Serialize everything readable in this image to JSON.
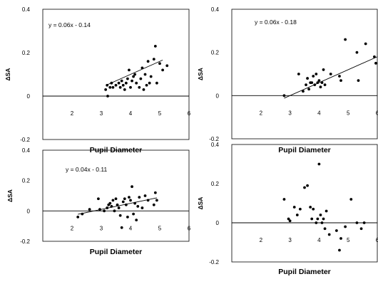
{
  "chart_data": [
    {
      "type": "scatter",
      "xlabel": "Pupil Diameter",
      "ylabel": "ΔSA",
      "xlim": [
        1,
        6
      ],
      "ylim": [
        -0.2,
        0.4
      ],
      "xticks": [
        "2",
        "3",
        "4",
        "5",
        "6"
      ],
      "yticks": [
        "0.4",
        "0.2",
        "0",
        "-0.2"
      ],
      "equation": "y = 0.06x - 0.14",
      "trendline": {
        "slope": 0.06,
        "intercept": -0.14,
        "x": [
          3.2,
          5.1
        ]
      },
      "points": [
        [
          3.15,
          0.03
        ],
        [
          3.2,
          0.05
        ],
        [
          3.22,
          0.0
        ],
        [
          3.3,
          0.04
        ],
        [
          3.35,
          0.06
        ],
        [
          3.4,
          0.04
        ],
        [
          3.5,
          0.05
        ],
        [
          3.6,
          0.06
        ],
        [
          3.65,
          0.04
        ],
        [
          3.7,
          0.07
        ],
        [
          3.75,
          0.05
        ],
        [
          3.8,
          0.03
        ],
        [
          3.85,
          0.06
        ],
        [
          3.9,
          0.08
        ],
        [
          3.95,
          0.12
        ],
        [
          4.0,
          0.04
        ],
        [
          4.05,
          0.07
        ],
        [
          4.1,
          0.09
        ],
        [
          4.15,
          0.1
        ],
        [
          4.2,
          0.06
        ],
        [
          4.3,
          0.04
        ],
        [
          4.35,
          0.08
        ],
        [
          4.4,
          0.13
        ],
        [
          4.45,
          0.03
        ],
        [
          4.5,
          0.1
        ],
        [
          4.55,
          0.05
        ],
        [
          4.6,
          0.16
        ],
        [
          4.65,
          0.06
        ],
        [
          4.7,
          0.09
        ],
        [
          4.8,
          0.17
        ],
        [
          4.85,
          0.23
        ],
        [
          4.9,
          0.06
        ],
        [
          5.0,
          0.15
        ],
        [
          5.1,
          0.12
        ],
        [
          5.25,
          0.14
        ]
      ]
    },
    {
      "type": "scatter",
      "xlabel": "Pupil Diameter",
      "ylabel": "ΔSA",
      "xlim": [
        1,
        6
      ],
      "ylim": [
        -0.2,
        0.4
      ],
      "xticks": [
        "2",
        "3",
        "4",
        "5",
        "6"
      ],
      "yticks": [
        "0.4",
        "0.2",
        "0",
        "-0.2"
      ],
      "equation": "y = 0.06x - 0.18",
      "trendline": {
        "slope": 0.06,
        "intercept": -0.18,
        "x": [
          2.8,
          6.0
        ]
      },
      "points": [
        [
          2.8,
          0.0
        ],
        [
          3.3,
          0.1
        ],
        [
          3.45,
          0.02
        ],
        [
          3.55,
          0.05
        ],
        [
          3.6,
          0.08
        ],
        [
          3.65,
          0.03
        ],
        [
          3.7,
          0.06
        ],
        [
          3.75,
          0.06
        ],
        [
          3.8,
          0.09
        ],
        [
          3.85,
          0.05
        ],
        [
          3.9,
          0.1
        ],
        [
          3.95,
          0.06
        ],
        [
          4.0,
          0.07
        ],
        [
          4.05,
          0.04
        ],
        [
          4.1,
          0.06
        ],
        [
          4.15,
          0.12
        ],
        [
          4.2,
          0.05
        ],
        [
          4.4,
          0.1
        ],
        [
          4.7,
          0.09
        ],
        [
          4.75,
          0.07
        ],
        [
          4.9,
          0.26
        ],
        [
          5.3,
          0.2
        ],
        [
          5.35,
          0.07
        ],
        [
          5.6,
          0.24
        ],
        [
          5.9,
          0.18
        ],
        [
          5.95,
          0.15
        ]
      ]
    },
    {
      "type": "scatter",
      "xlabel": "Pupil Diameter",
      "ylabel": "ΔSA",
      "xlim": [
        1,
        6
      ],
      "ylim": [
        -0.2,
        0.4
      ],
      "xticks": [
        "2",
        "3",
        "4",
        "5",
        "6"
      ],
      "yticks": [
        "0.4",
        "0.2",
        "0",
        "-0.2"
      ],
      "equation": "y = 0.04x - 0.11",
      "trendline": {
        "slope": 0.04,
        "intercept": -0.11,
        "x": [
          2.2,
          4.9
        ]
      },
      "points": [
        [
          2.2,
          -0.04
        ],
        [
          2.35,
          -0.02
        ],
        [
          2.6,
          0.01
        ],
        [
          2.9,
          0.08
        ],
        [
          2.95,
          0.01
        ],
        [
          3.1,
          0.0
        ],
        [
          3.2,
          0.02
        ],
        [
          3.25,
          0.04
        ],
        [
          3.3,
          0.05
        ],
        [
          3.35,
          0.03
        ],
        [
          3.4,
          0.07
        ],
        [
          3.45,
          0.0
        ],
        [
          3.5,
          0.08
        ],
        [
          3.55,
          0.04
        ],
        [
          3.6,
          0.02
        ],
        [
          3.65,
          -0.03
        ],
        [
          3.7,
          -0.11
        ],
        [
          3.75,
          0.06
        ],
        [
          3.8,
          0.08
        ],
        [
          3.85,
          0.04
        ],
        [
          3.9,
          -0.04
        ],
        [
          3.95,
          0.09
        ],
        [
          4.0,
          0.07
        ],
        [
          4.05,
          0.16
        ],
        [
          4.1,
          -0.02
        ],
        [
          4.15,
          0.05
        ],
        [
          4.2,
          -0.06
        ],
        [
          4.25,
          0.03
        ],
        [
          4.3,
          0.09
        ],
        [
          4.4,
          0.02
        ],
        [
          4.5,
          0.1
        ],
        [
          4.6,
          0.07
        ],
        [
          4.8,
          0.04
        ],
        [
          4.85,
          0.12
        ],
        [
          4.9,
          0.07
        ]
      ]
    },
    {
      "type": "scatter",
      "xlabel": "Pupil Diameter",
      "ylabel": "ΔSA",
      "xlim": [
        1,
        6
      ],
      "ylim": [
        -0.2,
        0.4
      ],
      "xticks": [
        "2",
        "3",
        "4",
        "5",
        "6"
      ],
      "yticks": [
        "0.4",
        "0.2",
        "0",
        "-0.2"
      ],
      "equation": "",
      "points": [
        [
          2.8,
          0.12
        ],
        [
          2.95,
          0.02
        ],
        [
          3.0,
          0.01
        ],
        [
          3.15,
          0.08
        ],
        [
          3.25,
          0.04
        ],
        [
          3.35,
          0.07
        ],
        [
          3.5,
          0.18
        ],
        [
          3.6,
          0.19
        ],
        [
          3.7,
          0.08
        ],
        [
          3.75,
          0.02
        ],
        [
          3.8,
          0.07
        ],
        [
          3.9,
          0.0
        ],
        [
          3.95,
          0.02
        ],
        [
          4.0,
          0.3
        ],
        [
          4.05,
          0.04
        ],
        [
          4.1,
          0.0
        ],
        [
          4.15,
          0.02
        ],
        [
          4.2,
          -0.03
        ],
        [
          4.25,
          0.06
        ],
        [
          4.35,
          -0.06
        ],
        [
          4.6,
          -0.04
        ],
        [
          4.7,
          -0.14
        ],
        [
          4.75,
          -0.08
        ],
        [
          4.9,
          -0.02
        ],
        [
          5.1,
          0.12
        ],
        [
          5.3,
          0.0
        ],
        [
          5.45,
          -0.03
        ],
        [
          5.55,
          0.0
        ]
      ]
    }
  ]
}
